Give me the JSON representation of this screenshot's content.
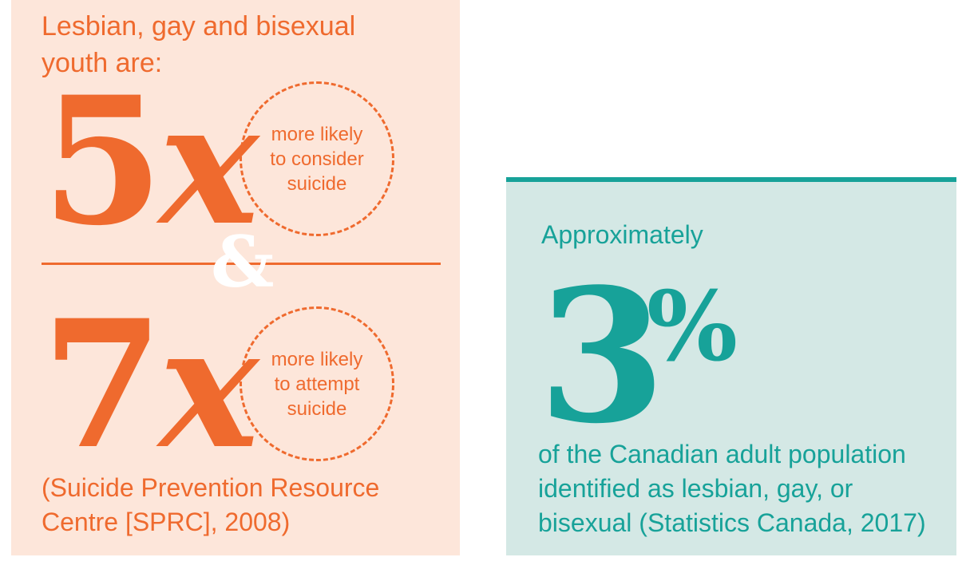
{
  "left": {
    "intro": "Lesbian, gay and bisexual youth are:",
    "stat1": {
      "number": "5",
      "multiplier": "x",
      "text": "more likely to consider suicide"
    },
    "connector": "&",
    "stat2": {
      "number": "7",
      "multiplier": "x",
      "text": "more likely to attempt suicide"
    },
    "source": "(Suicide Prevention Resource Centre [SPRC], 2008)"
  },
  "right": {
    "lead": "Approximately",
    "number": "3",
    "unit": "%",
    "description": "of the Canadian adult population identified as lesbian, gay, or bisexual (Statistics Canada, 2017)"
  },
  "colors": {
    "orange": "#ef6a2e",
    "peach_bg": "#fde6da",
    "teal": "#17a299",
    "mint_bg": "#d4e8e5"
  }
}
